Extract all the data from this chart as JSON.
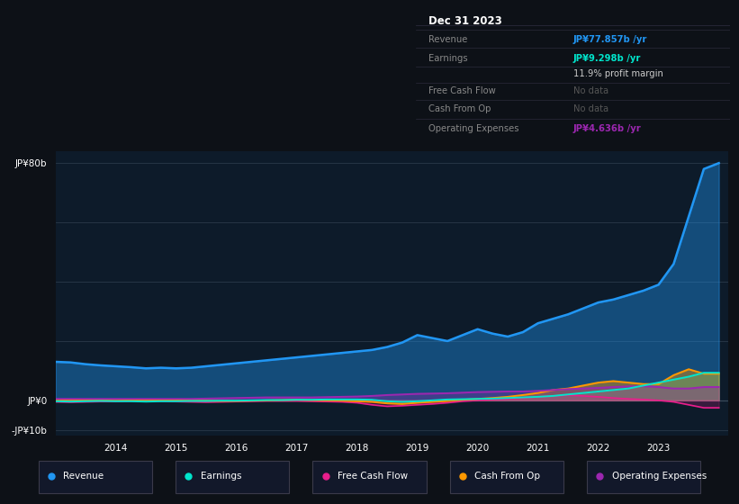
{
  "background_color": "#0d1117",
  "plot_bg_color": "#0d1b2a",
  "grid_color": "#1e2d3d",
  "years": [
    2013.0,
    2013.25,
    2013.5,
    2013.75,
    2014.0,
    2014.25,
    2014.5,
    2014.75,
    2015.0,
    2015.25,
    2015.5,
    2015.75,
    2016.0,
    2016.25,
    2016.5,
    2016.75,
    2017.0,
    2017.25,
    2017.5,
    2017.75,
    2018.0,
    2018.25,
    2018.5,
    2018.75,
    2019.0,
    2019.25,
    2019.5,
    2019.75,
    2020.0,
    2020.25,
    2020.5,
    2020.75,
    2021.0,
    2021.25,
    2021.5,
    2021.75,
    2022.0,
    2022.25,
    2022.5,
    2022.75,
    2023.0,
    2023.25,
    2023.5,
    2023.75,
    2024.0
  ],
  "revenue": [
    13,
    12.8,
    12.2,
    11.8,
    11.5,
    11.2,
    10.8,
    11.0,
    10.8,
    11.0,
    11.5,
    12.0,
    12.5,
    13.0,
    13.5,
    14.0,
    14.5,
    15.0,
    15.5,
    16.0,
    16.5,
    17.0,
    18.0,
    19.5,
    22.0,
    21.0,
    20.0,
    22.0,
    24.0,
    22.5,
    21.5,
    23.0,
    26.0,
    27.5,
    29.0,
    31.0,
    33.0,
    34.0,
    35.5,
    37.0,
    39.0,
    46.0,
    62.0,
    78.0,
    80.0
  ],
  "earnings": [
    -0.3,
    -0.4,
    -0.3,
    -0.2,
    -0.3,
    -0.3,
    -0.4,
    -0.3,
    -0.3,
    -0.2,
    -0.2,
    -0.1,
    -0.1,
    0.0,
    0.1,
    0.1,
    0.2,
    0.2,
    0.3,
    0.3,
    0.3,
    0.2,
    -0.3,
    -0.5,
    -0.3,
    0.0,
    0.3,
    0.4,
    0.5,
    0.6,
    0.8,
    1.0,
    1.2,
    1.5,
    2.0,
    2.5,
    3.0,
    3.5,
    4.0,
    5.0,
    6.0,
    7.0,
    8.0,
    9.3,
    9.3
  ],
  "free_cash_flow": [
    -0.5,
    -0.6,
    -0.5,
    -0.4,
    -0.4,
    -0.3,
    -0.3,
    -0.3,
    -0.4,
    -0.5,
    -0.6,
    -0.5,
    -0.4,
    -0.3,
    -0.2,
    -0.2,
    -0.2,
    -0.3,
    -0.4,
    -0.5,
    -0.8,
    -1.5,
    -2.0,
    -1.8,
    -1.5,
    -1.2,
    -0.8,
    -0.3,
    0.0,
    0.3,
    0.5,
    0.8,
    1.2,
    1.5,
    1.8,
    1.5,
    1.2,
    0.8,
    0.5,
    0.3,
    0.0,
    -0.5,
    -1.5,
    -2.5,
    -2.5
  ],
  "cash_from_op": [
    0.3,
    0.2,
    0.1,
    0.0,
    -0.1,
    0.0,
    0.1,
    0.1,
    0.0,
    -0.1,
    -0.1,
    -0.2,
    -0.2,
    -0.1,
    0.0,
    0.1,
    0.2,
    0.1,
    0.0,
    -0.1,
    -0.3,
    -0.5,
    -1.0,
    -1.2,
    -0.8,
    -0.5,
    -0.2,
    0.2,
    0.5,
    0.8,
    1.2,
    1.8,
    2.5,
    3.5,
    4.0,
    5.0,
    6.0,
    6.5,
    6.0,
    5.5,
    5.5,
    8.5,
    10.5,
    9.0,
    9.0
  ],
  "op_expenses": [
    0.5,
    0.5,
    0.5,
    0.5,
    0.5,
    0.5,
    0.5,
    0.5,
    0.5,
    0.5,
    0.6,
    0.7,
    0.8,
    0.9,
    1.0,
    1.0,
    1.0,
    1.0,
    1.1,
    1.2,
    1.3,
    1.5,
    1.8,
    2.0,
    2.2,
    2.3,
    2.4,
    2.6,
    2.8,
    2.9,
    3.0,
    3.0,
    3.2,
    3.5,
    3.8,
    4.0,
    4.2,
    4.5,
    4.7,
    4.8,
    4.5,
    4.0,
    4.0,
    4.5,
    4.5
  ],
  "ylim": [
    -12,
    84
  ],
  "xlim_left": 2013.0,
  "xlim_right": 2024.15,
  "xtick_years": [
    2014,
    2015,
    2016,
    2017,
    2018,
    2019,
    2020,
    2021,
    2022,
    2023
  ],
  "gridlines_y": [
    80,
    60,
    40,
    20,
    0,
    -10
  ],
  "ytick_labels": [
    {
      "y": 80,
      "label": "JP¥80b",
      "pos": "top"
    },
    {
      "y": 0,
      "label": "JP¥0",
      "pos": "zero"
    },
    {
      "y": -10,
      "label": "-JP¥10b",
      "pos": "bottom"
    }
  ],
  "revenue_color": "#2196f3",
  "revenue_fill": "#1565c0",
  "earnings_color": "#00e5cc",
  "fcf_color": "#e91e8c",
  "cfo_color": "#ff9800",
  "opex_color": "#9c27b0",
  "legend_items": [
    {
      "label": "Revenue",
      "color": "#2196f3"
    },
    {
      "label": "Earnings",
      "color": "#00e5cc"
    },
    {
      "label": "Free Cash Flow",
      "color": "#e91e8c"
    },
    {
      "label": "Cash From Op",
      "color": "#ff9800"
    },
    {
      "label": "Operating Expenses",
      "color": "#9c27b0"
    }
  ],
  "infobox": {
    "bg": "#0a0a0f",
    "border": "#2a2a3a",
    "title": "Dec 31 2023",
    "rows": [
      {
        "label": "Revenue",
        "value": "JP¥77.857b /yr",
        "value_color": "#2196f3",
        "label_color": "#888888",
        "bold_value": true
      },
      {
        "label": "Earnings",
        "value": "JP¥9.298b /yr",
        "value_color": "#00e5cc",
        "label_color": "#888888",
        "bold_value": true
      },
      {
        "label": "",
        "value": "11.9% profit margin",
        "value_color": "#cccccc",
        "label_color": "#888888",
        "bold_value": false
      },
      {
        "label": "Free Cash Flow",
        "value": "No data",
        "value_color": "#555555",
        "label_color": "#888888",
        "bold_value": false
      },
      {
        "label": "Cash From Op",
        "value": "No data",
        "value_color": "#555555",
        "label_color": "#888888",
        "bold_value": false
      },
      {
        "label": "Operating Expenses",
        "value": "JP¥4.636b /yr",
        "value_color": "#9c27b0",
        "label_color": "#888888",
        "bold_value": true
      }
    ]
  }
}
